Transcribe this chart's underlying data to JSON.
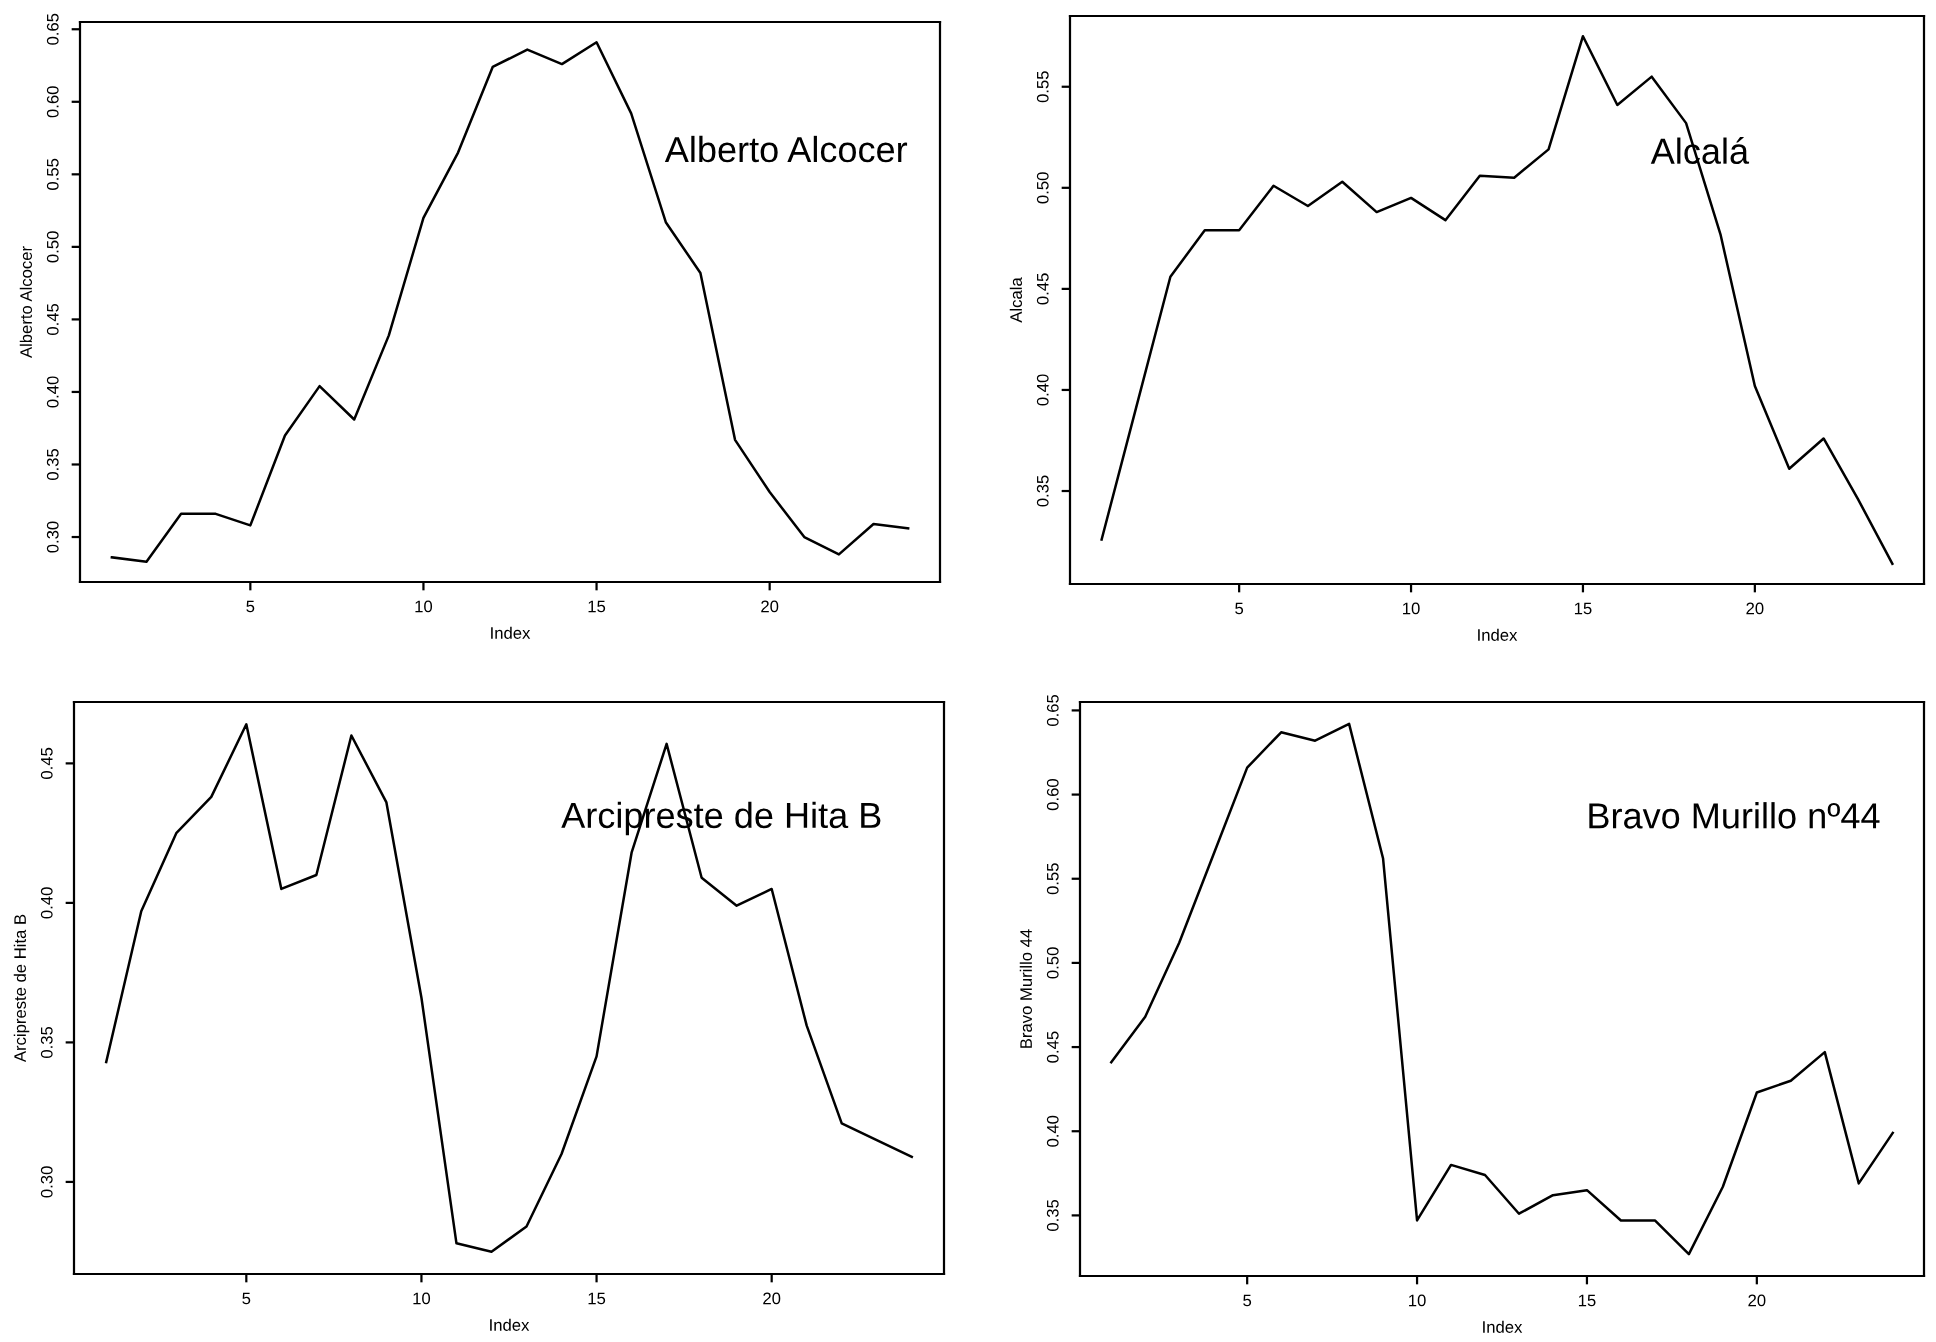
{
  "chart_data": [
    {
      "type": "line",
      "xlabel": "Index",
      "ylabel": "Alberto Alcocer",
      "annotations": [
        "Alberto Alcocer"
      ],
      "x": [
        1,
        2,
        3,
        4,
        5,
        6,
        7,
        8,
        9,
        10,
        11,
        12,
        13,
        14,
        15,
        16,
        17,
        18,
        19,
        20,
        21,
        22,
        23,
        24
      ],
      "series": [
        {
          "color": "#000000",
          "values": [
            0.286,
            0.283,
            0.316,
            0.316,
            0.308,
            0.37,
            0.404,
            0.381,
            0.439,
            0.52,
            0.565,
            0.624,
            0.636,
            0.626,
            0.641,
            0.592,
            0.517,
            0.482,
            0.367,
            0.331,
            0.3,
            0.288,
            0.309,
            0.306
          ]
        }
      ],
      "xlim": [
        0.08,
        24.92
      ],
      "ylim": [
        0.269,
        0.655
      ],
      "xticks": [
        5,
        10,
        15,
        20
      ],
      "yticks": [
        {
          "value": 0.3,
          "label": "0.30"
        },
        {
          "value": 0.35,
          "label": "0.35"
        },
        {
          "value": 0.4,
          "label": "0.40"
        },
        {
          "value": 0.45,
          "label": "0.45"
        },
        {
          "value": 0.5,
          "label": "0.50"
        },
        {
          "value": 0.55,
          "label": "0.55"
        },
        {
          "value": 0.6,
          "label": "0.60"
        },
        {
          "value": 0.65,
          "label": "0.65"
        }
      ],
      "grid": false,
      "legend": false
    },
    {
      "type": "line",
      "xlabel": "Index",
      "ylabel": "Alcala",
      "annotations": [
        "Alcalá"
      ],
      "x": [
        1,
        2,
        3,
        4,
        5,
        6,
        7,
        8,
        9,
        10,
        11,
        12,
        13,
        14,
        15,
        16,
        17,
        18,
        19,
        20,
        21,
        22,
        23,
        24
      ],
      "series": [
        {
          "color": "#000000",
          "values": [
            0.326,
            0.391,
            0.456,
            0.479,
            0.479,
            0.501,
            0.491,
            0.503,
            0.488,
            0.495,
            0.484,
            0.506,
            0.505,
            0.519,
            0.575,
            0.541,
            0.555,
            0.532,
            0.477,
            0.402,
            0.361,
            0.376,
            0.346,
            0.314
          ]
        }
      ],
      "xlim": [
        0.08,
        24.92
      ],
      "ylim": [
        0.304,
        0.585
      ],
      "xticks": [
        5,
        10,
        15,
        20
      ],
      "yticks": [
        {
          "value": 0.35,
          "label": "0.35"
        },
        {
          "value": 0.4,
          "label": "0.40"
        },
        {
          "value": 0.45,
          "label": "0.45"
        },
        {
          "value": 0.5,
          "label": "0.50"
        },
        {
          "value": 0.55,
          "label": "0.55"
        }
      ],
      "grid": false,
      "legend": false
    },
    {
      "type": "line",
      "xlabel": "Index",
      "ylabel": "Arcipreste de Hita B",
      "annotations": [
        "Arcipreste de Hita B"
      ],
      "x": [
        1,
        2,
        3,
        4,
        5,
        6,
        7,
        8,
        9,
        10,
        11,
        12,
        13,
        14,
        15,
        16,
        17,
        18,
        19,
        20,
        21,
        22,
        23,
        24
      ],
      "series": [
        {
          "color": "#000000",
          "values": [
            0.343,
            0.397,
            0.425,
            0.438,
            0.464,
            0.405,
            0.41,
            0.46,
            0.436,
            0.366,
            0.278,
            0.275,
            0.284,
            0.31,
            0.345,
            0.418,
            0.457,
            0.409,
            0.399,
            0.405,
            0.356,
            0.321,
            0.315,
            0.309
          ]
        }
      ],
      "xlim": [
        0.08,
        24.92
      ],
      "ylim": [
        0.267,
        0.472
      ],
      "xticks": [
        5,
        10,
        15,
        20
      ],
      "yticks": [
        {
          "value": 0.3,
          "label": "0.30"
        },
        {
          "value": 0.35,
          "label": "0.35"
        },
        {
          "value": 0.4,
          "label": "0.40"
        },
        {
          "value": 0.45,
          "label": "0.45"
        }
      ],
      "grid": false,
      "legend": false
    },
    {
      "type": "line",
      "xlabel": "Index",
      "ylabel": "Bravo Murillo 44",
      "annotations": [
        "Bravo Murillo nº44"
      ],
      "x": [
        1,
        2,
        3,
        4,
        5,
        6,
        7,
        8,
        9,
        10,
        11,
        12,
        13,
        14,
        15,
        16,
        17,
        18,
        19,
        20,
        21,
        22,
        23,
        24
      ],
      "series": [
        {
          "color": "#000000",
          "values": [
            0.441,
            0.468,
            0.512,
            0.564,
            0.616,
            0.637,
            0.632,
            0.642,
            0.562,
            0.347,
            0.38,
            0.374,
            0.351,
            0.362,
            0.365,
            0.347,
            0.347,
            0.327,
            0.367,
            0.423,
            0.43,
            0.447,
            0.369,
            0.399
          ]
        }
      ],
      "xlim": [
        0.08,
        24.92
      ],
      "ylim": [
        0.314,
        0.655
      ],
      "xticks": [
        5,
        10,
        15,
        20
      ],
      "yticks": [
        {
          "value": 0.35,
          "label": "0.35"
        },
        {
          "value": 0.4,
          "label": "0.40"
        },
        {
          "value": 0.45,
          "label": "0.45"
        },
        {
          "value": 0.5,
          "label": "0.50"
        },
        {
          "value": 0.55,
          "label": "0.55"
        },
        {
          "value": 0.6,
          "label": "0.60"
        },
        {
          "value": 0.65,
          "label": "0.65"
        }
      ],
      "grid": false,
      "legend": false
    }
  ]
}
